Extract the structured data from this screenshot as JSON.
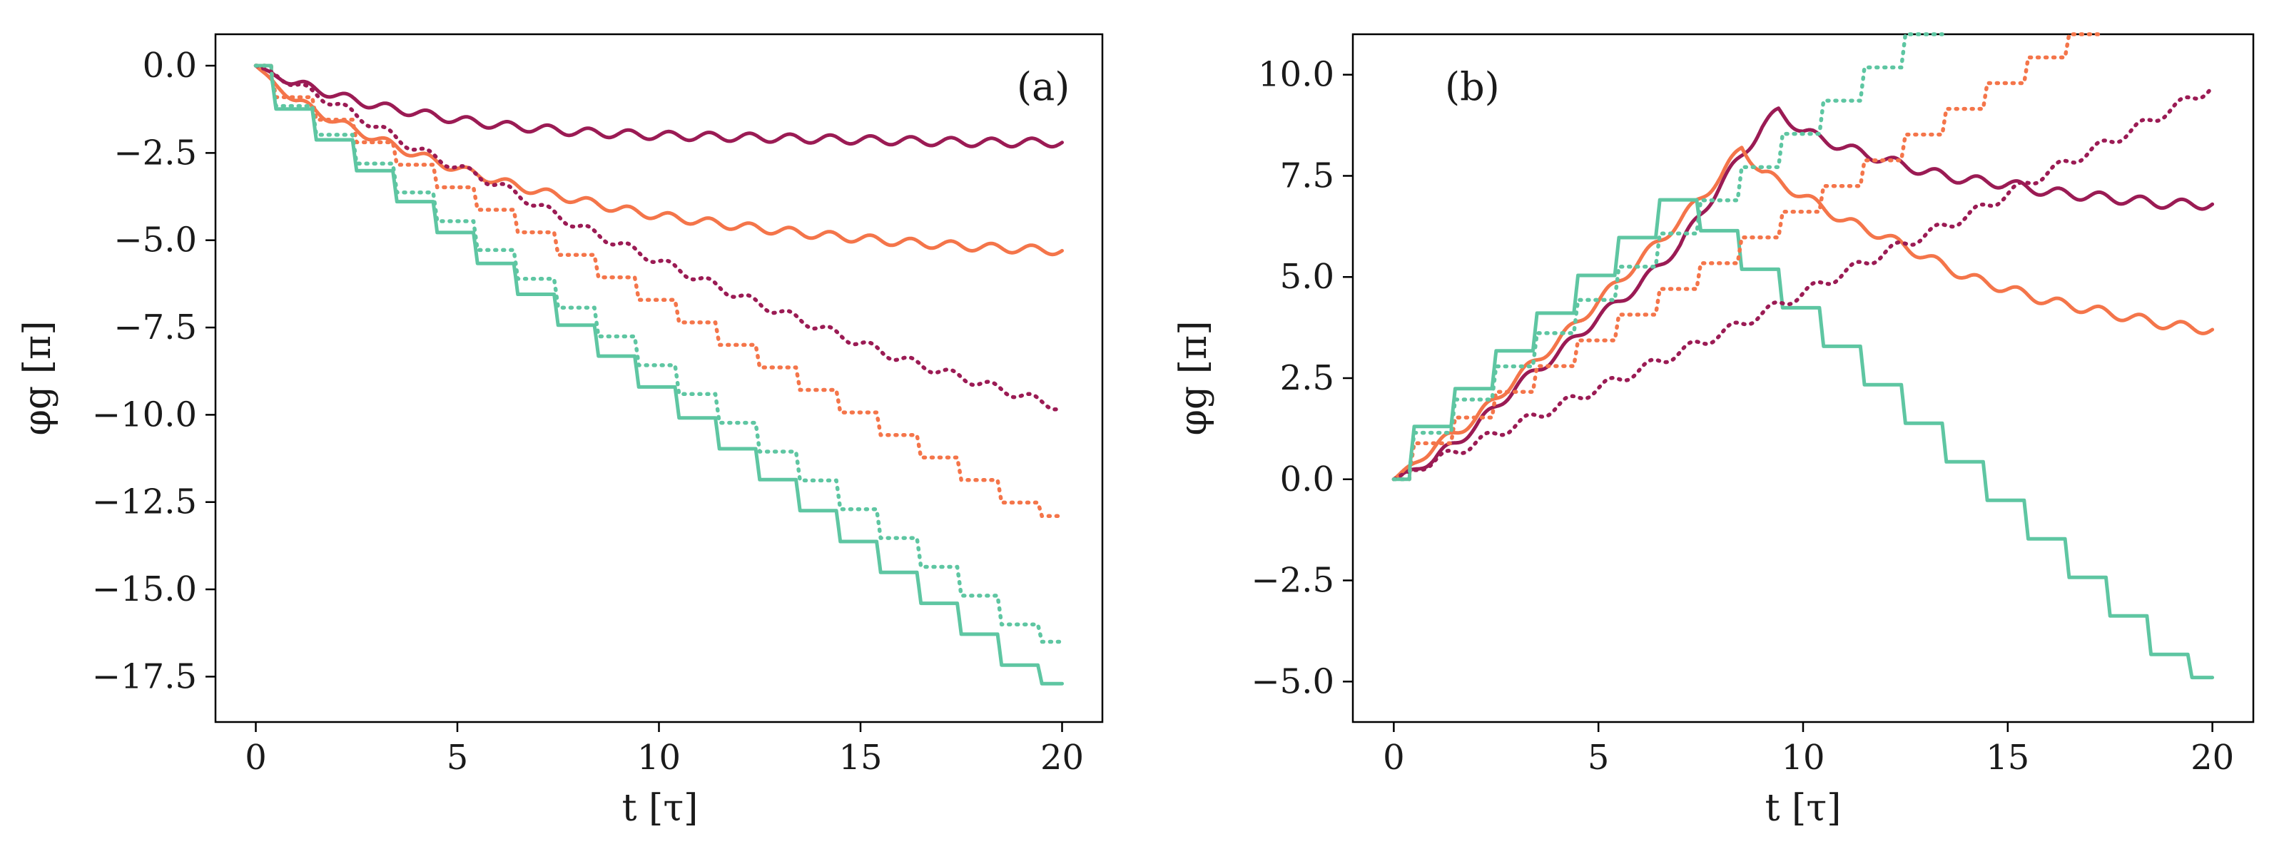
{
  "chart_data": [
    {
      "type": "line",
      "panel_label": "(a)",
      "xlabel": "t [τ]",
      "ylabel": "φg [π]",
      "xlim": [
        -1,
        21
      ],
      "ylim": [
        -18.8,
        0.9
      ],
      "xticks": [
        0,
        5,
        10,
        15,
        20
      ],
      "yticks": [
        0.0,
        -2.5,
        -5.0,
        -7.5,
        -10.0,
        -12.5,
        -15.0,
        -17.5
      ],
      "xtick_labels": [
        "0",
        "5",
        "10",
        "15",
        "20"
      ],
      "ytick_labels": [
        "0.0",
        "−2.5",
        "−5.0",
        "−7.5",
        "−10.0",
        "−12.5",
        "−15.0",
        "−17.5"
      ],
      "grid": false,
      "series": [
        {
          "name": "crimson solid",
          "color": "#9b1b54",
          "style": "solid",
          "shape": "wavy",
          "x": [
            0,
            0.5,
            1,
            2,
            3,
            4,
            5,
            6,
            7,
            8,
            10,
            12,
            14,
            16,
            18,
            20
          ],
          "y": [
            0,
            -0.3,
            -0.5,
            -0.85,
            -1.15,
            -1.35,
            -1.55,
            -1.7,
            -1.8,
            -1.9,
            -2.0,
            -2.05,
            -2.1,
            -2.15,
            -2.2,
            -2.2
          ]
        },
        {
          "name": "orange solid",
          "color": "#f4754a",
          "style": "solid",
          "shape": "wavy",
          "x": [
            0,
            0.5,
            1,
            2,
            3,
            4,
            5,
            6,
            7,
            8,
            9,
            10,
            12,
            14,
            16,
            18,
            20
          ],
          "y": [
            0,
            -0.55,
            -1.0,
            -1.6,
            -2.1,
            -2.55,
            -2.95,
            -3.3,
            -3.6,
            -3.85,
            -4.1,
            -4.3,
            -4.6,
            -4.85,
            -5.05,
            -5.2,
            -5.3
          ]
        },
        {
          "name": "teal solid",
          "color": "#5ec6a2",
          "style": "solid",
          "shape": "steps",
          "x": [
            0,
            20
          ],
          "y": [
            0,
            -17.7
          ]
        },
        {
          "name": "crimson dotted",
          "color": "#9b1b54",
          "style": "dotted",
          "shape": "wavy",
          "x": [
            0,
            2,
            4,
            6,
            8,
            10,
            12,
            14,
            16,
            18,
            20
          ],
          "y": [
            0,
            -1.1,
            -2.4,
            -3.4,
            -4.6,
            -5.6,
            -6.6,
            -7.5,
            -8.4,
            -9.1,
            -9.8
          ]
        },
        {
          "name": "orange dotted",
          "color": "#f4754a",
          "style": "dotted",
          "shape": "steps",
          "x": [
            0,
            20
          ],
          "y": [
            0,
            -12.9
          ]
        },
        {
          "name": "teal dotted",
          "color": "#5ec6a2",
          "style": "dotted",
          "shape": "steps",
          "x": [
            0,
            20
          ],
          "y": [
            0,
            -16.5
          ]
        }
      ]
    },
    {
      "type": "line",
      "panel_label": "(b)",
      "xlabel": "t [τ]",
      "ylabel": "φg [π]",
      "xlim": [
        -1,
        21
      ],
      "ylim": [
        -6.0,
        11.0
      ],
      "xticks": [
        0,
        5,
        10,
        15,
        20
      ],
      "yticks": [
        10.0,
        7.5,
        5.0,
        2.5,
        0.0,
        -2.5,
        -5.0
      ],
      "xtick_labels": [
        "0",
        "5",
        "10",
        "15",
        "20"
      ],
      "ytick_labels": [
        "10.0",
        "7.5",
        "5.0",
        "2.5",
        "0.0",
        "−2.5",
        "−5.0"
      ],
      "grid": false,
      "series": [
        {
          "name": "crimson solid",
          "color": "#9b1b54",
          "style": "solid",
          "shape": "wavy",
          "x": [
            0,
            1,
            2,
            3,
            4,
            5,
            6,
            7,
            8,
            9,
            9.4,
            10,
            11,
            12,
            13,
            14,
            15,
            16,
            17,
            18,
            19,
            20
          ],
          "y": [
            0,
            0.5,
            1.3,
            2.3,
            3.1,
            4.0,
            4.8,
            5.8,
            7.3,
            8.7,
            9.1,
            8.6,
            8.2,
            7.9,
            7.6,
            7.4,
            7.3,
            7.1,
            7.0,
            6.9,
            6.8,
            6.8
          ]
        },
        {
          "name": "orange solid",
          "color": "#f4754a",
          "style": "solid",
          "shape": "wavy",
          "x": [
            0,
            1,
            2,
            3,
            4,
            5,
            6,
            7,
            8,
            8.5,
            9,
            10,
            11,
            12,
            13,
            14,
            15,
            16,
            17,
            18,
            19,
            20
          ],
          "y": [
            0,
            0.8,
            1.5,
            2.5,
            3.4,
            4.4,
            5.4,
            6.4,
            7.5,
            8.2,
            7.6,
            7.0,
            6.4,
            6.0,
            5.5,
            5.0,
            4.7,
            4.4,
            4.2,
            4.0,
            3.8,
            3.7
          ]
        },
        {
          "name": "teal solid",
          "color": "#5ec6a2",
          "style": "solid",
          "shape": "steps",
          "x": [
            0,
            7.5,
            20
          ],
          "y": [
            0,
            7.0,
            -4.9
          ]
        },
        {
          "name": "crimson dotted",
          "color": "#9b1b54",
          "style": "dotted",
          "shape": "wavy",
          "x": [
            0,
            2,
            4,
            6,
            8,
            10,
            12,
            14,
            16,
            18,
            20
          ],
          "y": [
            0,
            0.9,
            1.8,
            2.7,
            3.6,
            4.6,
            5.6,
            6.5,
            7.6,
            8.6,
            9.7
          ]
        },
        {
          "name": "orange dotted",
          "color": "#f4754a",
          "style": "dotted",
          "shape": "steps",
          "x": [
            0,
            17.3
          ],
          "y": [
            0,
            11.0
          ]
        },
        {
          "name": "teal dotted",
          "color": "#5ec6a2",
          "style": "dotted",
          "shape": "steps",
          "x": [
            0,
            13.4
          ],
          "y": [
            0,
            11.0
          ]
        }
      ]
    }
  ]
}
